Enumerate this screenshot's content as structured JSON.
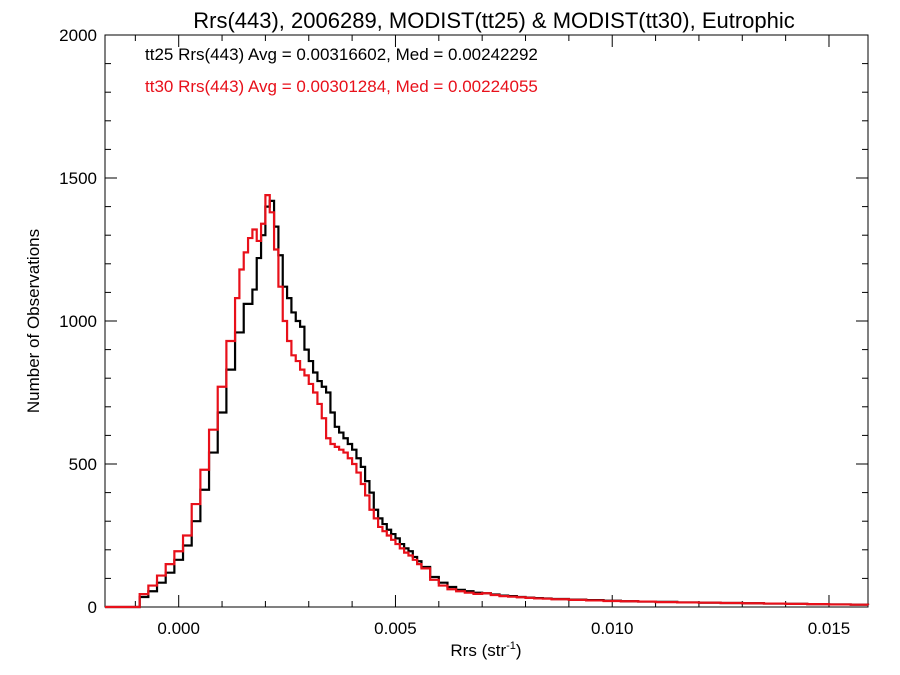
{
  "chart_data": {
    "type": "line",
    "title": "Rrs(443), 2006289, MODIST(tt25) & MODIST(tt30), Eutrophic",
    "xlabel": "Rrs (str",
    "xlabel_sup": "-1",
    "xlabel_end": ")",
    "ylabel": "Number of Observations",
    "xlim": [
      -0.0017,
      0.0159
    ],
    "ylim": [
      0,
      2000
    ],
    "xticks": [
      0.0,
      0.005,
      0.01,
      0.015
    ],
    "xtick_labels": [
      "0.000",
      "0.005",
      "0.010",
      "0.015"
    ],
    "yticks": [
      0,
      500,
      1000,
      1500,
      2000
    ],
    "ytick_labels": [
      "0",
      "500",
      "1000",
      "1500",
      "2000"
    ],
    "grid": false,
    "legend_position": "top-left",
    "series": [
      {
        "name": "tt25 Rrs(443) Avg = 0.00316602, Med = 0.00242292",
        "color": "#000000",
        "points": [
          [
            -0.0017,
            0
          ],
          [
            -0.001,
            0
          ],
          [
            -0.0009,
            35
          ],
          [
            -0.0007,
            55
          ],
          [
            -0.0005,
            85
          ],
          [
            -0.0003,
            120
          ],
          [
            -0.0001,
            165
          ],
          [
            0.0001,
            215
          ],
          [
            0.0003,
            300
          ],
          [
            0.0005,
            410
          ],
          [
            0.0007,
            540
          ],
          [
            0.0009,
            680
          ],
          [
            0.0011,
            830
          ],
          [
            0.0013,
            960
          ],
          [
            0.0015,
            1060
          ],
          [
            0.0017,
            1110
          ],
          [
            0.0018,
            1220
          ],
          [
            0.0019,
            1300
          ],
          [
            0.002,
            1400
          ],
          [
            0.0021,
            1420
          ],
          [
            0.0022,
            1330
          ],
          [
            0.0023,
            1230
          ],
          [
            0.0024,
            1120
          ],
          [
            0.0025,
            1080
          ],
          [
            0.0026,
            1030
          ],
          [
            0.0027,
            1000
          ],
          [
            0.0028,
            980
          ],
          [
            0.0029,
            900
          ],
          [
            0.003,
            860
          ],
          [
            0.0031,
            820
          ],
          [
            0.0032,
            790
          ],
          [
            0.0033,
            770
          ],
          [
            0.0034,
            750
          ],
          [
            0.0035,
            680
          ],
          [
            0.0036,
            630
          ],
          [
            0.0037,
            610
          ],
          [
            0.0038,
            590
          ],
          [
            0.0039,
            570
          ],
          [
            0.004,
            550
          ],
          [
            0.0041,
            520
          ],
          [
            0.0042,
            490
          ],
          [
            0.0043,
            440
          ],
          [
            0.0044,
            400
          ],
          [
            0.0045,
            340
          ],
          [
            0.0046,
            310
          ],
          [
            0.0047,
            290
          ],
          [
            0.0048,
            270
          ],
          [
            0.0049,
            255
          ],
          [
            0.005,
            240
          ],
          [
            0.0051,
            220
          ],
          [
            0.0052,
            205
          ],
          [
            0.0053,
            195
          ],
          [
            0.0054,
            175
          ],
          [
            0.0055,
            160
          ],
          [
            0.0056,
            140
          ],
          [
            0.0058,
            105
          ],
          [
            0.006,
            85
          ],
          [
            0.0062,
            70
          ],
          [
            0.0064,
            60
          ],
          [
            0.0066,
            55
          ],
          [
            0.0068,
            50
          ],
          [
            0.007,
            48
          ],
          [
            0.0072,
            44
          ],
          [
            0.0074,
            40
          ],
          [
            0.0076,
            38
          ],
          [
            0.0078,
            35
          ],
          [
            0.008,
            33
          ],
          [
            0.0082,
            31
          ],
          [
            0.0084,
            30
          ],
          [
            0.0086,
            28
          ],
          [
            0.009,
            26
          ],
          [
            0.0094,
            24
          ],
          [
            0.0098,
            22
          ],
          [
            0.0102,
            20
          ],
          [
            0.0106,
            19
          ],
          [
            0.011,
            18
          ],
          [
            0.0115,
            16
          ],
          [
            0.012,
            15
          ],
          [
            0.0125,
            14
          ],
          [
            0.013,
            13
          ],
          [
            0.0135,
            12
          ],
          [
            0.014,
            11
          ],
          [
            0.0145,
            10
          ],
          [
            0.015,
            9
          ],
          [
            0.0155,
            8
          ],
          [
            0.0159,
            7
          ]
        ]
      },
      {
        "name": "tt30 Rrs(443) Avg = 0.00301284, Med = 0.00224055",
        "color": "#e8101a",
        "points": [
          [
            -0.0017,
            0
          ],
          [
            -0.001,
            0
          ],
          [
            -0.0009,
            45
          ],
          [
            -0.0007,
            75
          ],
          [
            -0.0005,
            110
          ],
          [
            -0.0003,
            150
          ],
          [
            -0.0001,
            195
          ],
          [
            0.0001,
            250
          ],
          [
            0.0003,
            360
          ],
          [
            0.0005,
            480
          ],
          [
            0.0007,
            620
          ],
          [
            0.0009,
            770
          ],
          [
            0.0011,
            930
          ],
          [
            0.0013,
            1080
          ],
          [
            0.0014,
            1180
          ],
          [
            0.0015,
            1240
          ],
          [
            0.0016,
            1290
          ],
          [
            0.0017,
            1320
          ],
          [
            0.0018,
            1280
          ],
          [
            0.0019,
            1340
          ],
          [
            0.002,
            1440
          ],
          [
            0.0021,
            1380
          ],
          [
            0.0022,
            1250
          ],
          [
            0.0023,
            1120
          ],
          [
            0.0024,
            1000
          ],
          [
            0.0025,
            930
          ],
          [
            0.0026,
            880
          ],
          [
            0.0027,
            860
          ],
          [
            0.0028,
            830
          ],
          [
            0.0029,
            810
          ],
          [
            0.003,
            780
          ],
          [
            0.0031,
            750
          ],
          [
            0.0032,
            710
          ],
          [
            0.0033,
            660
          ],
          [
            0.0034,
            590
          ],
          [
            0.0035,
            570
          ],
          [
            0.0036,
            560
          ],
          [
            0.0037,
            550
          ],
          [
            0.0038,
            540
          ],
          [
            0.0039,
            520
          ],
          [
            0.004,
            500
          ],
          [
            0.0041,
            470
          ],
          [
            0.0042,
            430
          ],
          [
            0.0043,
            390
          ],
          [
            0.0044,
            340
          ],
          [
            0.0045,
            310
          ],
          [
            0.0046,
            280
          ],
          [
            0.0047,
            265
          ],
          [
            0.0048,
            250
          ],
          [
            0.0049,
            235
          ],
          [
            0.005,
            220
          ],
          [
            0.0051,
            205
          ],
          [
            0.0052,
            190
          ],
          [
            0.0053,
            180
          ],
          [
            0.0054,
            165
          ],
          [
            0.0055,
            150
          ],
          [
            0.0056,
            135
          ],
          [
            0.0058,
            95
          ],
          [
            0.006,
            75
          ],
          [
            0.0062,
            62
          ],
          [
            0.0064,
            55
          ],
          [
            0.0066,
            50
          ],
          [
            0.0068,
            46
          ],
          [
            0.007,
            48
          ],
          [
            0.0072,
            42
          ],
          [
            0.0074,
            38
          ],
          [
            0.0076,
            36
          ],
          [
            0.0078,
            34
          ],
          [
            0.008,
            32
          ],
          [
            0.0082,
            30
          ],
          [
            0.0084,
            29
          ],
          [
            0.0086,
            27
          ],
          [
            0.009,
            25
          ],
          [
            0.0094,
            23
          ],
          [
            0.0098,
            21
          ],
          [
            0.0102,
            20
          ],
          [
            0.0106,
            19
          ],
          [
            0.011,
            17
          ],
          [
            0.0115,
            16
          ],
          [
            0.012,
            15
          ],
          [
            0.0125,
            14
          ],
          [
            0.013,
            13
          ],
          [
            0.0135,
            12
          ],
          [
            0.014,
            11
          ],
          [
            0.0145,
            10
          ],
          [
            0.015,
            9
          ],
          [
            0.0155,
            8
          ],
          [
            0.0159,
            7
          ]
        ]
      }
    ]
  }
}
